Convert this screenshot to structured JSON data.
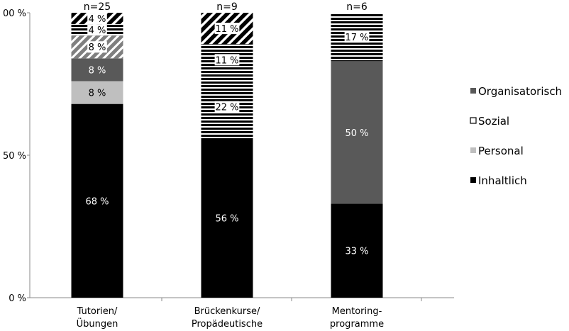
{
  "chart_data": {
    "type": "bar",
    "stacked": true,
    "categories": [
      [
        "Tutorien/",
        "Übungen"
      ],
      [
        "Brückenkurse/",
        "Propädeutische"
      ],
      [
        "Mentoring-",
        "programme"
      ]
    ],
    "n_labels": [
      "n=25",
      "n=9",
      "n=6"
    ],
    "y_ticks": [
      "0 %",
      "50 %",
      "00 %"
    ],
    "ylim": [
      0,
      100
    ],
    "legend_position": "right",
    "legend": [
      "Organisatorisch",
      "Sozial",
      "Personal",
      "Inhaltlich"
    ],
    "segments": [
      [
        {
          "pattern": "black",
          "value": 68,
          "label": "68 %"
        },
        {
          "pattern": "lightgray",
          "value": 8,
          "label": "8 %"
        },
        {
          "pattern": "darkgray",
          "value": 8,
          "label": "8 %"
        },
        {
          "pattern": "diag-gray",
          "value": 8,
          "label": "8 %"
        },
        {
          "pattern": "hstripe",
          "value": 4,
          "label": "4 %"
        },
        {
          "pattern": "diag-black",
          "value": 4,
          "label": "4 %"
        }
      ],
      [
        {
          "pattern": "black",
          "value": 56,
          "label": "56 %"
        },
        {
          "pattern": "hstripe",
          "value": 22,
          "label": "22 %"
        },
        {
          "pattern": "hstripe",
          "value": 11,
          "label": "11 %"
        },
        {
          "pattern": "diag-black",
          "value": 11,
          "label": "11 %"
        }
      ],
      [
        {
          "pattern": "black",
          "value": 33,
          "label": "33 %"
        },
        {
          "pattern": "darkgray",
          "value": 50,
          "label": "50 %"
        },
        {
          "pattern": "hstripe",
          "value": 17,
          "label": "17 %"
        }
      ]
    ],
    "legend_swatches": [
      "darkgray",
      "white-outline",
      "lightgray",
      "black"
    ],
    "colors": {
      "black": "#000000",
      "darkgray": "#595959",
      "lightgray": "#bfbfbf",
      "axis": "#888888"
    }
  }
}
